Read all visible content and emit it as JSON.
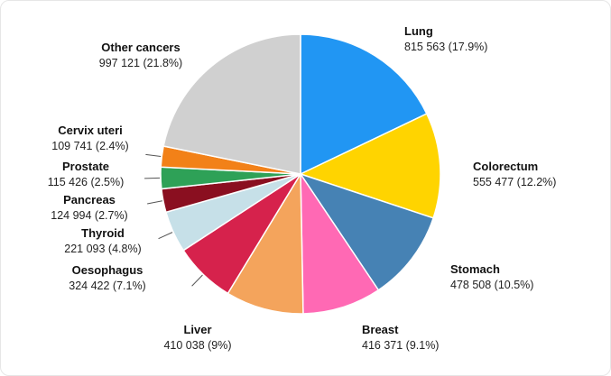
{
  "chart_data": {
    "type": "pie",
    "title": "",
    "direction": "clockwise",
    "start_angle": "top",
    "legend": "none",
    "slices": [
      {
        "key": "lung",
        "label": "Lung",
        "value": 815563,
        "value_line": "815 563 (17.9%)",
        "percent": 17.9,
        "color": "#2196F3",
        "leader": false
      },
      {
        "key": "colorectum",
        "label": "Colorectum",
        "value": 555477,
        "value_line": "555 477 (12.2%)",
        "percent": 12.2,
        "color": "#FFD400",
        "leader": false
      },
      {
        "key": "stomach",
        "label": "Stomach",
        "value": 478508,
        "value_line": "478 508 (10.5%)",
        "percent": 10.5,
        "color": "#4682B4",
        "leader": false
      },
      {
        "key": "breast",
        "label": "Breast",
        "value": 416371,
        "value_line": "416 371 (9.1%)",
        "percent": 9.1,
        "color": "#FF69B4",
        "leader": false
      },
      {
        "key": "liver",
        "label": "Liver",
        "value": 410038,
        "value_line": "410 038 (9%)",
        "percent": 9.0,
        "color": "#F4A45C",
        "leader": false
      },
      {
        "key": "oesophagus",
        "label": "Oesophagus",
        "value": 324422,
        "value_line": "324 422 (7.1%)",
        "percent": 7.1,
        "color": "#D6224C",
        "leader": true
      },
      {
        "key": "thyroid",
        "label": "Thyroid",
        "value": 221093,
        "value_line": "221 093 (4.8%)",
        "percent": 4.8,
        "color": "#C6E0E8",
        "leader": true
      },
      {
        "key": "pancreas",
        "label": "Pancreas",
        "value": 124994,
        "value_line": "124 994 (2.7%)",
        "percent": 2.7,
        "color": "#8A0F20",
        "leader": true
      },
      {
        "key": "prostate",
        "label": "Prostate",
        "value": 115426,
        "value_line": "115 426 (2.5%)",
        "percent": 2.5,
        "color": "#2EA157",
        "leader": true
      },
      {
        "key": "cervix-uteri",
        "label": "Cervix uteri",
        "value": 109741,
        "value_line": "109 741 (2.4%)",
        "percent": 2.4,
        "color": "#F28118",
        "leader": true
      },
      {
        "key": "other-cancers",
        "label": "Other cancers",
        "value": 997121,
        "value_line": "997 121 (21.8%)",
        "percent": 21.8,
        "color": "#D0D0D0",
        "leader": false
      }
    ]
  }
}
